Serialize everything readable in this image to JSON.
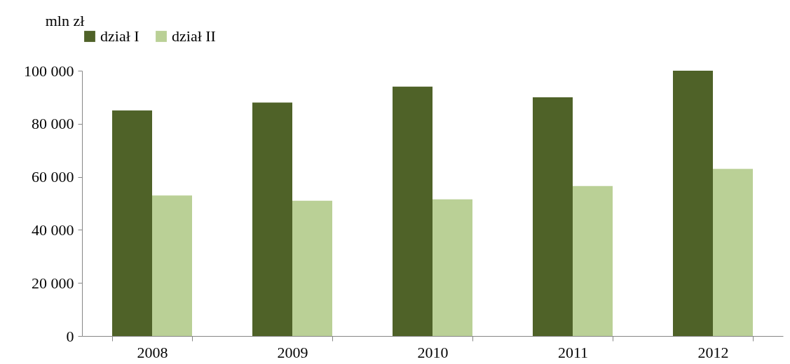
{
  "chart_data": {
    "type": "bar",
    "ylabel": "mln zł",
    "categories": [
      "2008",
      "2009",
      "2010",
      "2011",
      "2012"
    ],
    "series": [
      {
        "name": "dział I",
        "color": "#4f6228",
        "values": [
          85000,
          88000,
          94000,
          90000,
          100000
        ]
      },
      {
        "name": "dział II",
        "color": "#bad096",
        "values": [
          53000,
          51000,
          51500,
          56500,
          63000
        ]
      }
    ],
    "ylim": [
      0,
      100000
    ],
    "yticks": [
      {
        "value": 0,
        "label": "0"
      },
      {
        "value": 20000,
        "label": "20 000"
      },
      {
        "value": 40000,
        "label": "40 000"
      },
      {
        "value": 60000,
        "label": "60 000"
      },
      {
        "value": 80000,
        "label": "80 000"
      },
      {
        "value": 100000,
        "label": "100 000"
      }
    ],
    "grid": false,
    "legend": "top"
  }
}
